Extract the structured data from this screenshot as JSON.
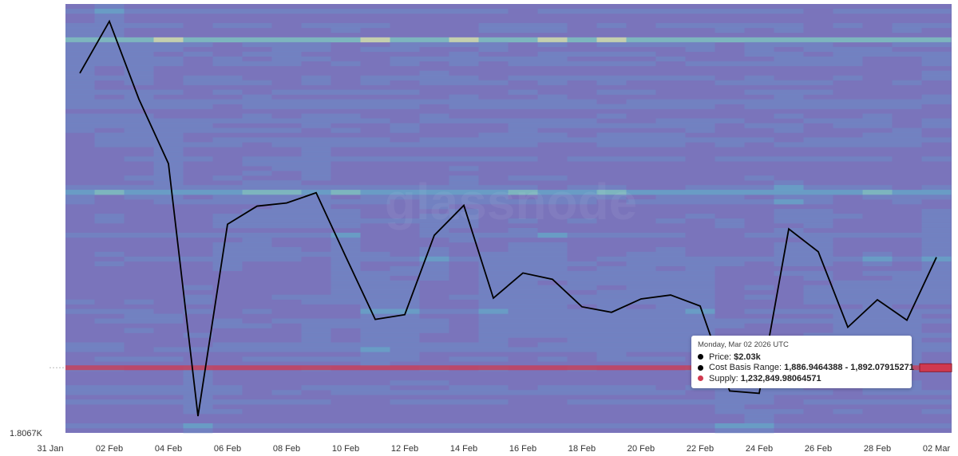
{
  "chart_data": {
    "type": "heatmap",
    "watermark": "glassnode",
    "x": [
      "01 Feb",
      "02 Feb",
      "03 Feb",
      "04 Feb",
      "05 Feb",
      "06 Feb",
      "07 Feb",
      "08 Feb",
      "09 Feb",
      "10 Feb",
      "11 Feb",
      "12 Feb",
      "13 Feb",
      "14 Feb",
      "15 Feb",
      "16 Feb",
      "17 Feb",
      "18 Feb",
      "19 Feb",
      "20 Feb",
      "21 Feb",
      "22 Feb",
      "23 Feb",
      "24 Feb",
      "25 Feb",
      "26 Feb",
      "27 Feb",
      "28 Feb",
      "01 Mar",
      "02 Mar"
    ],
    "x_tick_labels": [
      "31 Jan",
      "02 Feb",
      "04 Feb",
      "06 Feb",
      "08 Feb",
      "10 Feb",
      "12 Feb",
      "14 Feb",
      "16 Feb",
      "18 Feb",
      "20 Feb",
      "22 Feb",
      "24 Feb",
      "26 Feb",
      "28 Feb",
      "02 Mar"
    ],
    "y_tick_labels": [
      "1.8067K"
    ],
    "ylim": [
      1806.7,
      2352
    ],
    "series": [
      {
        "type": "line",
        "color": "#000000",
        "values": [
          2264,
          2330,
          2231,
          2149,
          1828,
          2072,
          2095,
          2099,
          2112,
          2031,
          1951,
          1957,
          2058,
          2096,
          1978,
          2010,
          2002,
          1967,
          1960,
          1977,
          1982,
          1968,
          1860,
          1857,
          2066,
          2037,
          1941,
          1976,
          1950,
          2030
        ]
      }
    ],
    "highlight_level": 1889.5,
    "highlight_color": "#d0394f",
    "colorscale": [
      "#7a74bb",
      "#6d8ac6",
      "#5fb5cc",
      "#7fd6c0",
      "#e4f7a8"
    ],
    "tooltip": {
      "title": "Monday, Mar 02 2026 UTC",
      "price_label": "Price:",
      "price_value": "$2.03k",
      "range_label": "Cost Basis Range:",
      "range_value": "1,886.9464388 - 1,892.07915271",
      "supply_label": "Supply:",
      "supply_value": "1,232,849.98064571",
      "price_color": "#000000",
      "range_color": "#000000",
      "supply_color": "#d0394f"
    }
  }
}
